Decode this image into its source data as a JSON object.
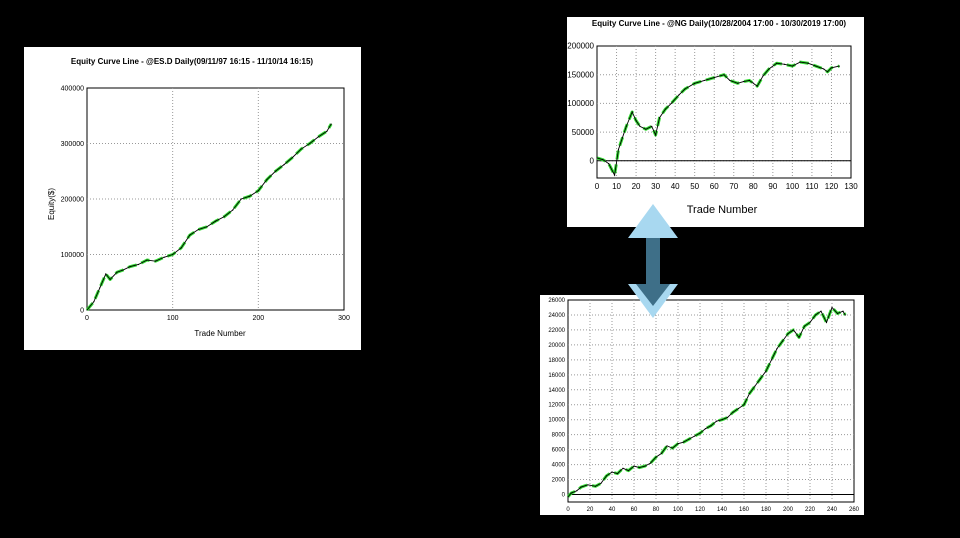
{
  "chart_data": [
    {
      "type": "line",
      "title": "Equity Curve Line - @ES.D Daily(09/11/97 16:15 - 11/10/14 16:15)",
      "xlabel": "Trade Number",
      "ylabel": "Equity($)",
      "xlim": [
        0,
        300
      ],
      "ylim": [
        0,
        400000
      ],
      "xticks": [
        0,
        100,
        200,
        300
      ],
      "yticks": [
        0,
        100000,
        200000,
        300000,
        400000
      ],
      "grid": true,
      "series": [
        {
          "color": "#000000",
          "highlight_color": "#33dd33",
          "x": [
            0,
            8,
            15,
            22,
            27,
            35,
            42,
            50,
            60,
            70,
            80,
            90,
            100,
            110,
            120,
            130,
            140,
            150,
            160,
            170,
            180,
            190,
            200,
            210,
            220,
            230,
            240,
            250,
            260,
            270,
            280,
            285
          ],
          "y": [
            0,
            15000,
            40000,
            65000,
            55000,
            68000,
            72000,
            78000,
            82000,
            90000,
            88000,
            95000,
            100000,
            112000,
            135000,
            145000,
            150000,
            160000,
            168000,
            180000,
            200000,
            205000,
            215000,
            235000,
            250000,
            262000,
            275000,
            290000,
            300000,
            312000,
            322000,
            335000
          ]
        }
      ]
    },
    {
      "type": "line",
      "title": "Equity Curve Line - @NG Daily(10/28/2004 17:00 - 10/30/2019 17:00)",
      "xlabel": "Trade Number",
      "ylabel": "",
      "xlim": [
        0,
        130
      ],
      "ylim": [
        -30000,
        200000
      ],
      "xticks": [
        0,
        10,
        20,
        30,
        40,
        50,
        60,
        70,
        80,
        90,
        100,
        110,
        120,
        130
      ],
      "yticks": [
        0,
        50000,
        100000,
        150000,
        200000
      ],
      "grid": true,
      "series": [
        {
          "color": "#000000",
          "highlight_color": "#33dd33",
          "x": [
            0,
            3,
            6,
            9,
            11,
            13,
            15,
            18,
            20,
            22,
            25,
            28,
            30,
            32,
            35,
            38,
            42,
            45,
            50,
            55,
            60,
            65,
            68,
            72,
            75,
            78,
            82,
            85,
            88,
            92,
            96,
            100,
            104,
            108,
            112,
            116,
            118,
            120,
            124
          ],
          "y": [
            5000,
            2000,
            -5000,
            -25000,
            20000,
            40000,
            60000,
            85000,
            70000,
            60000,
            55000,
            60000,
            45000,
            75000,
            90000,
            100000,
            115000,
            125000,
            135000,
            140000,
            145000,
            150000,
            140000,
            135000,
            138000,
            140000,
            130000,
            148000,
            160000,
            170000,
            168000,
            165000,
            172000,
            170000,
            165000,
            160000,
            155000,
            162000,
            165000
          ]
        }
      ]
    },
    {
      "type": "line",
      "title": "",
      "xlabel": "",
      "ylabel": "",
      "xlim": [
        0,
        260
      ],
      "ylim": [
        -1000,
        26000
      ],
      "xticks": [
        0,
        20,
        40,
        60,
        80,
        100,
        120,
        140,
        160,
        180,
        200,
        220,
        240,
        260
      ],
      "yticks": [
        0,
        2000,
        4000,
        6000,
        8000,
        10000,
        12000,
        14000,
        16000,
        18000,
        20000,
        22000,
        24000,
        26000
      ],
      "grid": true,
      "series": [
        {
          "color": "#000000",
          "highlight_color": "#33dd33",
          "x": [
            0,
            3,
            8,
            12,
            18,
            25,
            30,
            35,
            40,
            45,
            50,
            55,
            60,
            65,
            70,
            75,
            80,
            85,
            90,
            95,
            100,
            105,
            110,
            115,
            120,
            125,
            130,
            135,
            140,
            145,
            150,
            155,
            160,
            165,
            170,
            175,
            180,
            185,
            190,
            195,
            200,
            205,
            210,
            215,
            220,
            225,
            230,
            235,
            240,
            245,
            250,
            252
          ],
          "y": [
            -300,
            200,
            500,
            1000,
            1300,
            1100,
            1500,
            2500,
            3000,
            2800,
            3500,
            3200,
            3800,
            3600,
            3800,
            4200,
            5000,
            5500,
            6500,
            6200,
            6800,
            7000,
            7400,
            7800,
            8200,
            8800,
            9200,
            9800,
            10000,
            10300,
            11000,
            11500,
            12000,
            13500,
            14500,
            15500,
            16500,
            18000,
            19500,
            20500,
            21500,
            22000,
            21000,
            22500,
            23000,
            24000,
            24500,
            23000,
            25000,
            24200,
            24500,
            24000
          ]
        }
      ]
    }
  ]
}
